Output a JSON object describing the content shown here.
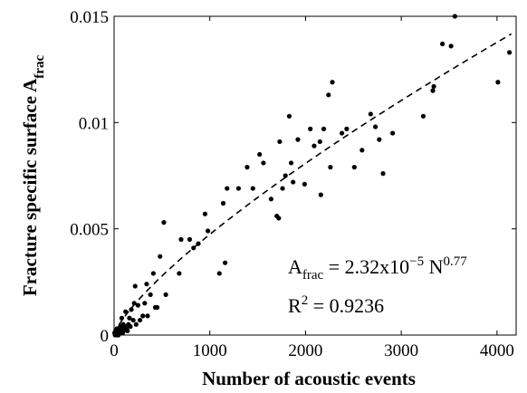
{
  "chart_data": {
    "type": "scatter",
    "xlabel": "Number of acoustic events",
    "ylabel_main": "Fracture specific surface A",
    "ylabel_sub": "frac",
    "xlim": [
      0,
      4200
    ],
    "ylim": [
      0,
      0.015
    ],
    "x_ticks": [
      {
        "value": 0,
        "label": "0"
      },
      {
        "value": 1000,
        "label": "1000"
      },
      {
        "value": 2000,
        "label": "2000"
      },
      {
        "value": 3000,
        "label": "3000"
      },
      {
        "value": 4000,
        "label": "4000"
      }
    ],
    "y_ticks": [
      {
        "value": 0,
        "label": "0"
      },
      {
        "value": 0.005,
        "label": "0.005"
      },
      {
        "value": 0.01,
        "label": "0.01"
      },
      {
        "value": 0.015,
        "label": "0.015"
      }
    ],
    "fit": {
      "coef": 2.32e-05,
      "exponent": 0.77,
      "style": "dashed",
      "equation": {
        "lhs": "A",
        "lhs_sub": "frac",
        "middle": " = 2.32x10",
        "exp1": "−5",
        "n": " N",
        "exp2": "0.77"
      },
      "r2": {
        "label": "R",
        "sup": "2",
        "rest": " = 0.9236"
      }
    },
    "series": [
      {
        "points": [
          [
            5,
            0.0001
          ],
          [
            10,
            0.0
          ],
          [
            15,
            0.0002
          ],
          [
            20,
            0.0001
          ],
          [
            25,
            0.0
          ],
          [
            30,
            0.0003
          ],
          [
            35,
            0.0001
          ],
          [
            40,
            0.0002
          ],
          [
            45,
            0.0
          ],
          [
            50,
            0.0003
          ],
          [
            55,
            0.0001
          ],
          [
            60,
            0.0002
          ],
          [
            65,
            0.0004
          ],
          [
            70,
            0.0001
          ],
          [
            75,
            0.0002
          ],
          [
            80,
            0.0008
          ],
          [
            85,
            0.0003
          ],
          [
            90,
            0.0001
          ],
          [
            95,
            0.0005
          ],
          [
            100,
            0.0002
          ],
          [
            110,
            0.0004
          ],
          [
            120,
            0.0011
          ],
          [
            130,
            0.0003
          ],
          [
            140,
            0.0002
          ],
          [
            150,
            0.0005
          ],
          [
            160,
            0.0008
          ],
          [
            170,
            0.0004
          ],
          [
            180,
            0.0012
          ],
          [
            200,
            0.0007
          ],
          [
            210,
            0.0015
          ],
          [
            220,
            0.0023
          ],
          [
            230,
            0.0005
          ],
          [
            250,
            0.0014
          ],
          [
            270,
            0.0007
          ],
          [
            300,
            0.0009
          ],
          [
            320,
            0.0015
          ],
          [
            340,
            0.0024
          ],
          [
            350,
            0.0009
          ],
          [
            380,
            0.0019
          ],
          [
            410,
            0.0029
          ],
          [
            430,
            0.0013
          ],
          [
            450,
            0.0013
          ],
          [
            480,
            0.0037
          ],
          [
            520,
            0.0053
          ],
          [
            540,
            0.0019
          ],
          [
            680,
            0.0029
          ],
          [
            700,
            0.0045
          ],
          [
            790,
            0.0045
          ],
          [
            830,
            0.0041
          ],
          [
            880,
            0.0043
          ],
          [
            950,
            0.0057
          ],
          [
            980,
            0.0049
          ],
          [
            1100,
            0.0029
          ],
          [
            1140,
            0.0062
          ],
          [
            1160,
            0.0034
          ],
          [
            1180,
            0.0069
          ],
          [
            1300,
            0.0069
          ],
          [
            1390,
            0.0079
          ],
          [
            1450,
            0.0069
          ],
          [
            1520,
            0.0085
          ],
          [
            1560,
            0.0081
          ],
          [
            1640,
            0.0064
          ],
          [
            1700,
            0.0056
          ],
          [
            1720,
            0.0055
          ],
          [
            1730,
            0.0091
          ],
          [
            1760,
            0.0069
          ],
          [
            1790,
            0.0075
          ],
          [
            1830,
            0.0103
          ],
          [
            1850,
            0.0081
          ],
          [
            1870,
            0.0072
          ],
          [
            1920,
            0.0092
          ],
          [
            1990,
            0.0071
          ],
          [
            2050,
            0.0097
          ],
          [
            2090,
            0.0089
          ],
          [
            2150,
            0.0091
          ],
          [
            2160,
            0.0066
          ],
          [
            2190,
            0.0097
          ],
          [
            2240,
            0.0113
          ],
          [
            2260,
            0.0079
          ],
          [
            2280,
            0.0119
          ],
          [
            2380,
            0.0095
          ],
          [
            2430,
            0.0097
          ],
          [
            2510,
            0.0079
          ],
          [
            2590,
            0.0087
          ],
          [
            2680,
            0.0104
          ],
          [
            2730,
            0.0098
          ],
          [
            2770,
            0.0092
          ],
          [
            2810,
            0.0076
          ],
          [
            2910,
            0.0095
          ],
          [
            3230,
            0.0103
          ],
          [
            3330,
            0.0115
          ],
          [
            3340,
            0.0117
          ],
          [
            3430,
            0.0137
          ],
          [
            3520,
            0.0136
          ],
          [
            3560,
            0.015
          ],
          [
            4010,
            0.0119
          ],
          [
            4130,
            0.0133
          ]
        ]
      }
    ]
  }
}
